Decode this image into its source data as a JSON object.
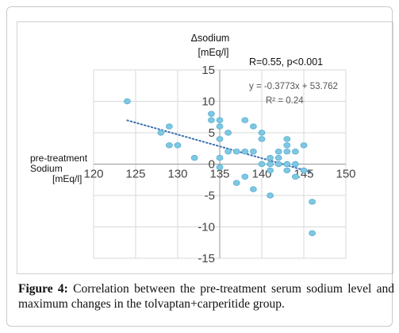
{
  "chart_data": {
    "type": "scatter",
    "title": "",
    "xlabel": "pre-treatment Sodium [mEq/l]",
    "xlabel_lines": [
      "pre-treatment",
      "Sodium",
      "[mEq/l]"
    ],
    "ylabel": "Δsodium [mEq/l]",
    "ylabel_lines": [
      "Δsodium",
      "[mEq/l]"
    ],
    "xlim": [
      120,
      150
    ],
    "ylim": [
      -15,
      15
    ],
    "x_ticks": [
      120,
      125,
      130,
      135,
      140,
      145,
      150
    ],
    "y_ticks": [
      -15,
      -10,
      -5,
      0,
      5,
      10,
      15
    ],
    "x_tick_labels": [
      "120",
      "125",
      "130",
      "135",
      "140",
      "145",
      "150"
    ],
    "y_tick_labels": [
      "-15",
      "-10",
      "-5",
      "0",
      "5",
      "10",
      "15"
    ],
    "grid": true,
    "stat_annotation": "R=0.55, p<0.001",
    "equation": "y = -0.3773x + 53.762",
    "r_squared": "R² = 0.24",
    "trendline": {
      "slope": -0.3773,
      "intercept": 53.762,
      "x_range": [
        124,
        146
      ]
    },
    "points": [
      [
        124,
        10
      ],
      [
        128,
        5
      ],
      [
        129,
        6
      ],
      [
        129,
        3
      ],
      [
        130,
        3
      ],
      [
        132,
        1
      ],
      [
        134,
        8
      ],
      [
        134,
        7
      ],
      [
        135,
        7
      ],
      [
        135,
        6
      ],
      [
        135,
        4
      ],
      [
        135,
        1
      ],
      [
        135,
        -0.5
      ],
      [
        136,
        5
      ],
      [
        136,
        2
      ],
      [
        137,
        2
      ],
      [
        137,
        -3
      ],
      [
        138,
        7
      ],
      [
        138,
        2
      ],
      [
        138,
        -2
      ],
      [
        139,
        6
      ],
      [
        139,
        2
      ],
      [
        139,
        -4
      ],
      [
        140,
        5
      ],
      [
        140,
        4
      ],
      [
        140,
        0
      ],
      [
        141,
        1
      ],
      [
        141,
        0
      ],
      [
        141,
        -1
      ],
      [
        141,
        -5
      ],
      [
        142,
        2
      ],
      [
        142,
        1
      ],
      [
        142,
        0
      ],
      [
        143,
        4
      ],
      [
        143,
        3
      ],
      [
        143,
        2
      ],
      [
        143,
        0
      ],
      [
        143,
        -1
      ],
      [
        144,
        2
      ],
      [
        144,
        0
      ],
      [
        144,
        -2
      ],
      [
        145,
        3
      ],
      [
        145,
        -1
      ],
      [
        146,
        -6
      ],
      [
        146,
        -11
      ]
    ],
    "point_color": "#7ec8e3",
    "point_stroke": "#5aaed0",
    "trend_color": "#3a6fb0"
  },
  "caption": {
    "lead": "Figure 4:",
    "text": "Correlation between the pre-treatment serum sodium level and maximum changes in the tolvaptan+carperitide group."
  }
}
